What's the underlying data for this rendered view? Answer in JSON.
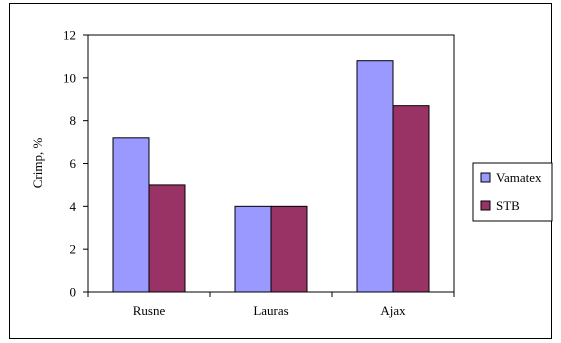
{
  "chart_data": {
    "type": "bar",
    "categories": [
      "Rusne",
      "Lauras",
      "Ajax"
    ],
    "series": [
      {
        "name": "Vamatex",
        "values": [
          7.2,
          4.0,
          10.8
        ],
        "color": "#9999ff"
      },
      {
        "name": "STB",
        "values": [
          5.0,
          4.0,
          8.7
        ],
        "color": "#993366"
      }
    ],
    "ylabel": "Crimp, %",
    "xlabel": "",
    "ylim": [
      0,
      12
    ],
    "yticks": [
      0,
      2,
      4,
      6,
      8,
      10,
      12
    ],
    "grid": false,
    "legend": "right"
  }
}
